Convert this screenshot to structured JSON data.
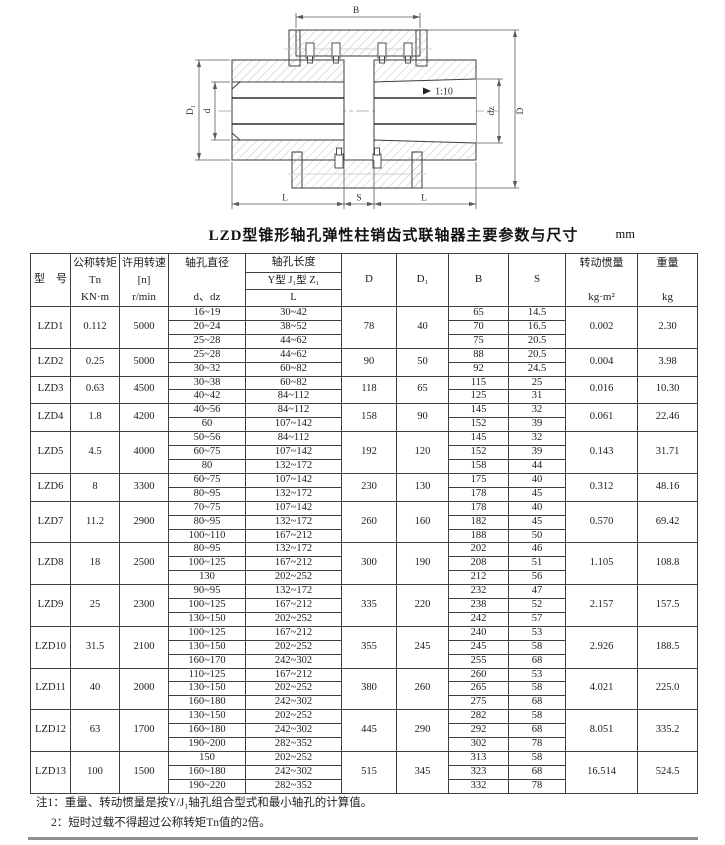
{
  "page": {
    "title": "LZD型锥形轴孔弹性柱销齿式联轴器主要参数与尺寸",
    "unit": "mm"
  },
  "drawing": {
    "labels": {
      "B": "B",
      "D": "D",
      "D1": "D₁",
      "d": "d",
      "dz": "dz",
      "taper": "1:10",
      "L_left": "L",
      "S": "S",
      "L_right": "L"
    }
  },
  "table": {
    "header": {
      "model": "型　号",
      "torque": [
        "公称转矩",
        "Tn",
        "KN·m"
      ],
      "speed": [
        "许用转速",
        "[n]",
        "r/min"
      ],
      "bore_dia": [
        "轴孔直径",
        "d、dz"
      ],
      "bore_len": "轴孔长度",
      "bore_len_types": "Y型 J₁型 Z₁",
      "bore_len_L": "L",
      "D": "D",
      "D1": "D₁",
      "B": "B",
      "S": "S",
      "inertia": [
        "转动惯量",
        "kg·m²"
      ],
      "weight": [
        "重量",
        "kg"
      ]
    },
    "rows": [
      {
        "model": "LZD1",
        "tn": "0.112",
        "n": "5000",
        "D": "78",
        "D1": "40",
        "inertia": "0.002",
        "weight": "2.30",
        "sub": [
          [
            "16~19",
            "30~42",
            "65",
            "14.5"
          ],
          [
            "20~24",
            "38~52",
            "70",
            "16.5"
          ],
          [
            "25~28",
            "44~62",
            "75",
            "20.5"
          ]
        ]
      },
      {
        "model": "LZD2",
        "tn": "0.25",
        "n": "5000",
        "D": "90",
        "D1": "50",
        "inertia": "0.004",
        "weight": "3.98",
        "sub": [
          [
            "25~28",
            "44~62",
            "88",
            "20.5"
          ],
          [
            "30~32",
            "60~82",
            "92",
            "24.5"
          ]
        ]
      },
      {
        "model": "LZD3",
        "tn": "0.63",
        "n": "4500",
        "D": "118",
        "D1": "65",
        "inertia": "0.016",
        "weight": "10.30",
        "sub": [
          [
            "30~38",
            "60~82",
            "115",
            "25"
          ],
          [
            "40~42",
            "84~112",
            "125",
            "31"
          ]
        ]
      },
      {
        "model": "LZD4",
        "tn": "1.8",
        "n": "4200",
        "D": "158",
        "D1": "90",
        "inertia": "0.061",
        "weight": "22.46",
        "sub": [
          [
            "40~56",
            "84~112",
            "145",
            "32"
          ],
          [
            "60",
            "107~142",
            "152",
            "39"
          ]
        ]
      },
      {
        "model": "LZD5",
        "tn": "4.5",
        "n": "4000",
        "D": "192",
        "D1": "120",
        "inertia": "0.143",
        "weight": "31.71",
        "sub": [
          [
            "50~56",
            "84~112",
            "145",
            "32"
          ],
          [
            "60~75",
            "107~142",
            "152",
            "39"
          ],
          [
            "80",
            "132~172",
            "158",
            "44"
          ]
        ]
      },
      {
        "model": "LZD6",
        "tn": "8",
        "n": "3300",
        "D": "230",
        "D1": "130",
        "inertia": "0.312",
        "weight": "48.16",
        "sub": [
          [
            "60~75",
            "107~142",
            "175",
            "40"
          ],
          [
            "80~95",
            "132~172",
            "178",
            "45"
          ]
        ]
      },
      {
        "model": "LZD7",
        "tn": "11.2",
        "n": "2900",
        "D": "260",
        "D1": "160",
        "inertia": "0.570",
        "weight": "69.42",
        "sub": [
          [
            "70~75",
            "107~142",
            "178",
            "40"
          ],
          [
            "80~95",
            "132~172",
            "182",
            "45"
          ],
          [
            "100~110",
            "167~212",
            "188",
            "50"
          ]
        ]
      },
      {
        "model": "LZD8",
        "tn": "18",
        "n": "2500",
        "D": "300",
        "D1": "190",
        "inertia": "1.105",
        "weight": "108.8",
        "sub": [
          [
            "80~95",
            "132~172",
            "202",
            "46"
          ],
          [
            "100~125",
            "167~212",
            "208",
            "51"
          ],
          [
            "130",
            "202~252",
            "212",
            "56"
          ]
        ]
      },
      {
        "model": "LZD9",
        "tn": "25",
        "n": "2300",
        "D": "335",
        "D1": "220",
        "inertia": "2.157",
        "weight": "157.5",
        "sub": [
          [
            "90~95",
            "132~172",
            "232",
            "47"
          ],
          [
            "100~125",
            "167~212",
            "238",
            "52"
          ],
          [
            "130~150",
            "202~252",
            "242",
            "57"
          ]
        ]
      },
      {
        "model": "LZD10",
        "tn": "31.5",
        "n": "2100",
        "D": "355",
        "D1": "245",
        "inertia": "2.926",
        "weight": "188.5",
        "sub": [
          [
            "100~125",
            "167~212",
            "240",
            "53"
          ],
          [
            "130~150",
            "202~252",
            "245",
            "58"
          ],
          [
            "160~170",
            "242~302",
            "255",
            "68"
          ]
        ]
      },
      {
        "model": "LZD11",
        "tn": "40",
        "n": "2000",
        "D": "380",
        "D1": "260",
        "inertia": "4.021",
        "weight": "225.0",
        "sub": [
          [
            "110~125",
            "167~212",
            "260",
            "53"
          ],
          [
            "130~150",
            "202~252",
            "265",
            "58"
          ],
          [
            "160~180",
            "242~302",
            "275",
            "68"
          ]
        ]
      },
      {
        "model": "LZD12",
        "tn": "63",
        "n": "1700",
        "D": "445",
        "D1": "290",
        "inertia": "8.051",
        "weight": "335.2",
        "sub": [
          [
            "130~150",
            "202~252",
            "282",
            "58"
          ],
          [
            "160~180",
            "242~302",
            "292",
            "68"
          ],
          [
            "190~200",
            "282~352",
            "302",
            "78"
          ]
        ]
      },
      {
        "model": "LZD13",
        "tn": "100",
        "n": "1500",
        "D": "515",
        "D1": "345",
        "inertia": "16.514",
        "weight": "524.5",
        "sub": [
          [
            "150",
            "202~252",
            "313",
            "58"
          ],
          [
            "160~180",
            "242~302",
            "323",
            "68"
          ],
          [
            "190~220",
            "282~352",
            "332",
            "78"
          ]
        ]
      }
    ]
  },
  "notes": {
    "n1": "注1：重量、转动惯量是按Y/J₁轴孔组合型式和最小轴孔的计算值。",
    "n2": "2：短时过载不得超过公称转矩Tn值的2倍。"
  }
}
